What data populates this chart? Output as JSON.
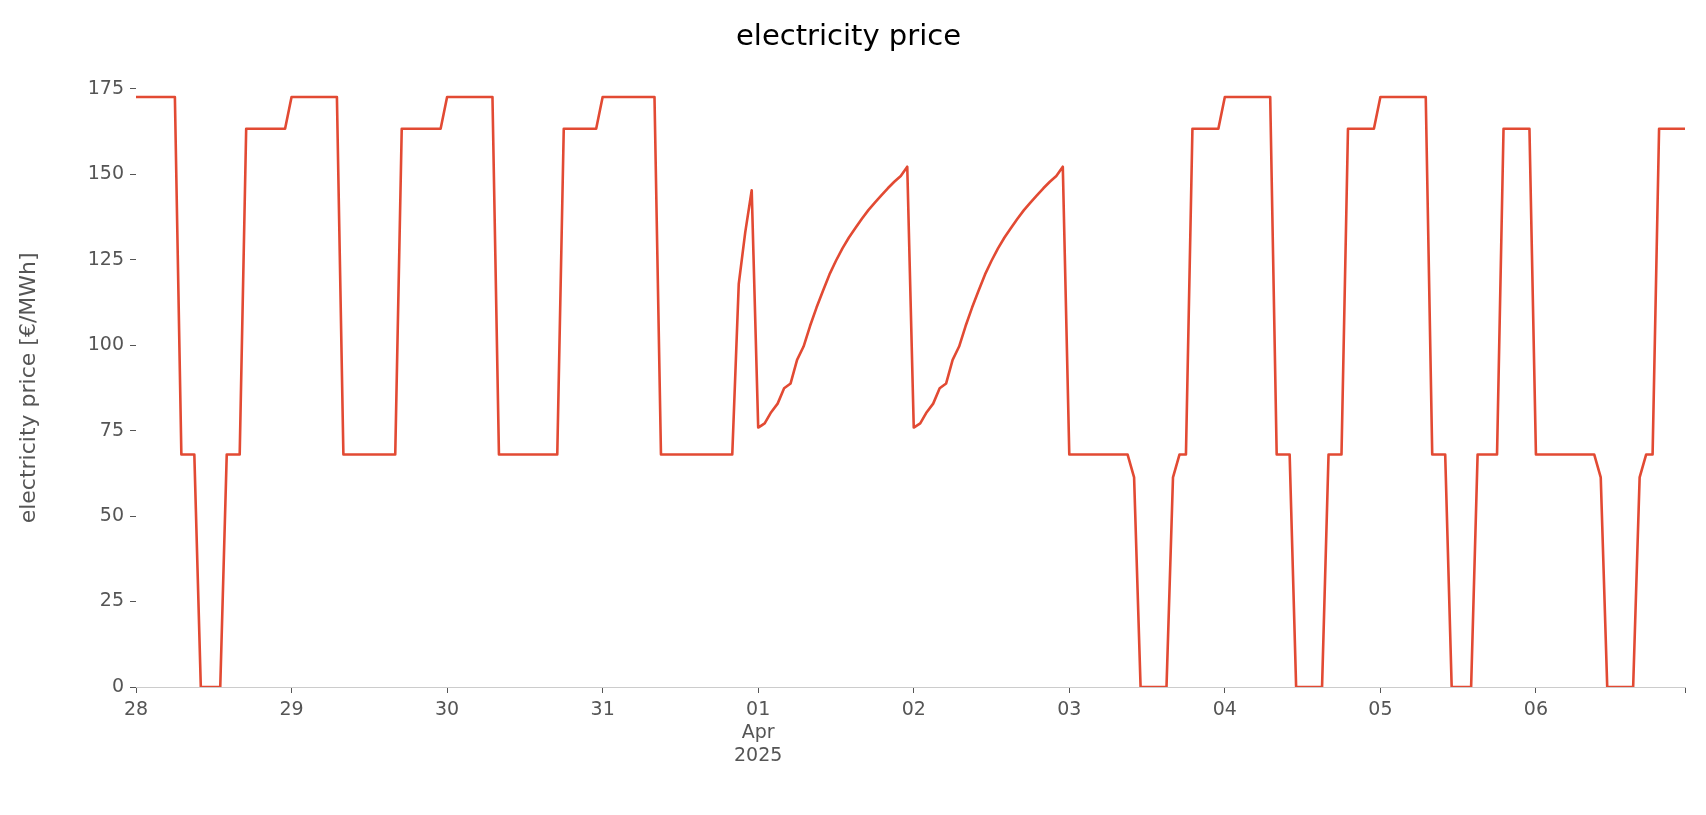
{
  "chart_data": {
    "type": "line",
    "title": "electricity price",
    "ylabel": "electricity price [€/MWh]",
    "x": [
      "2025-03-28T00:00",
      "2025-03-28T06:00",
      "2025-03-28T07:00",
      "2025-03-28T09:00",
      "2025-03-28T10:00",
      "2025-03-28T13:00",
      "2025-03-28T14:00",
      "2025-03-28T16:00",
      "2025-03-28T17:00",
      "2025-03-28T23:00",
      "2025-03-29T00:00",
      "2025-03-29T07:00",
      "2025-03-29T08:00",
      "2025-03-29T16:00",
      "2025-03-29T17:00",
      "2025-03-29T23:00",
      "2025-03-30T00:00",
      "2025-03-30T07:00",
      "2025-03-30T08:00",
      "2025-03-30T17:00",
      "2025-03-30T18:00",
      "2025-03-30T23:00",
      "2025-03-31T00:00",
      "2025-03-31T08:00",
      "2025-03-31T09:00",
      "2025-03-31T20:00",
      "2025-03-31T21:00",
      "2025-03-31T22:00",
      "2025-03-31T23:00",
      "2025-04-01T00:00",
      "2025-04-01T01:00",
      "2025-04-01T02:00",
      "2025-04-01T03:00",
      "2025-04-01T04:00",
      "2025-04-01T05:00",
      "2025-04-01T06:00",
      "2025-04-01T07:00",
      "2025-04-01T08:00",
      "2025-04-01T09:00",
      "2025-04-01T10:00",
      "2025-04-01T11:00",
      "2025-04-01T12:00",
      "2025-04-01T13:00",
      "2025-04-01T14:00",
      "2025-04-01T15:00",
      "2025-04-01T16:00",
      "2025-04-01T17:00",
      "2025-04-01T18:00",
      "2025-04-01T19:00",
      "2025-04-01T20:00",
      "2025-04-01T21:00",
      "2025-04-01T22:00",
      "2025-04-01T23:00",
      "2025-04-02T00:00",
      "2025-04-02T01:00",
      "2025-04-02T02:00",
      "2025-04-02T03:00",
      "2025-04-02T04:00",
      "2025-04-02T05:00",
      "2025-04-02T06:00",
      "2025-04-02T07:00",
      "2025-04-02T08:00",
      "2025-04-02T09:00",
      "2025-04-02T10:00",
      "2025-04-02T11:00",
      "2025-04-02T12:00",
      "2025-04-02T13:00",
      "2025-04-02T14:00",
      "2025-04-02T15:00",
      "2025-04-02T16:00",
      "2025-04-02T17:00",
      "2025-04-02T18:00",
      "2025-04-02T19:00",
      "2025-04-02T20:00",
      "2025-04-02T21:00",
      "2025-04-02T22:00",
      "2025-04-02T23:00",
      "2025-04-03T00:00",
      "2025-04-03T09:00",
      "2025-04-03T10:00",
      "2025-04-03T11:00",
      "2025-04-03T15:00",
      "2025-04-03T16:00",
      "2025-04-03T17:00",
      "2025-04-03T18:00",
      "2025-04-03T19:00",
      "2025-04-03T23:00",
      "2025-04-04T00:00",
      "2025-04-04T07:00",
      "2025-04-04T08:00",
      "2025-04-04T10:00",
      "2025-04-04T11:00",
      "2025-04-04T15:00",
      "2025-04-04T16:00",
      "2025-04-04T18:00",
      "2025-04-04T19:00",
      "2025-04-04T23:00",
      "2025-04-05T00:00",
      "2025-04-05T07:00",
      "2025-04-05T08:00",
      "2025-04-05T10:00",
      "2025-04-05T11:00",
      "2025-04-05T14:00",
      "2025-04-05T15:00",
      "2025-04-05T18:00",
      "2025-04-05T19:00",
      "2025-04-05T23:00",
      "2025-04-06T00:00",
      "2025-04-06T09:00",
      "2025-04-06T10:00",
      "2025-04-06T11:00",
      "2025-04-06T15:00",
      "2025-04-06T16:00",
      "2025-04-06T17:00",
      "2025-04-06T18:00",
      "2025-04-06T19:00",
      "2025-04-06T23:00"
    ],
    "series": [
      {
        "color": "#e24a33",
        "values": [
          172.6,
          172.6,
          68,
          68,
          0,
          0,
          68,
          68,
          163.3,
          163.3,
          172.6,
          172.6,
          68,
          68,
          163.3,
          163.3,
          172.6,
          172.6,
          68,
          68,
          163.3,
          163.3,
          172.6,
          172.6,
          68,
          68,
          117.9,
          133,
          145.3,
          75.9,
          77.1,
          80.4,
          82.9,
          87.4,
          88.8,
          95.7,
          99.6,
          105.6,
          111.0,
          115.9,
          120.7,
          124.7,
          128.3,
          131.5,
          134.3,
          137.0,
          139.5,
          141.7,
          143.8,
          145.9,
          147.8,
          149.5,
          152.2,
          75.9,
          77.1,
          80.4,
          82.9,
          87.4,
          88.8,
          95.7,
          99.6,
          105.6,
          111.0,
          115.9,
          120.7,
          124.7,
          128.3,
          131.5,
          134.3,
          137.0,
          139.5,
          141.7,
          143.8,
          145.9,
          147.8,
          149.5,
          152.2,
          68,
          68,
          61.3,
          0,
          0,
          61.3,
          68,
          68,
          163.3,
          163.3,
          172.6,
          172.6,
          68,
          68,
          0,
          0,
          68,
          68,
          163.3,
          163.3,
          172.6,
          172.6,
          68,
          68,
          0,
          0,
          68,
          68,
          163.3,
          163.3,
          68,
          68,
          61.3,
          0,
          0,
          61.3,
          68,
          68,
          163.3,
          163.3
        ]
      }
    ],
    "xticks": [
      {
        "value": "2025-03-28",
        "label": "28"
      },
      {
        "value": "2025-03-29",
        "label": "29"
      },
      {
        "value": "2025-03-30",
        "label": "30"
      },
      {
        "value": "2025-03-31",
        "label": "31"
      },
      {
        "value": "2025-04-01",
        "label": "01\nApr\n2025"
      },
      {
        "value": "2025-04-02",
        "label": "02"
      },
      {
        "value": "2025-04-03",
        "label": "03"
      },
      {
        "value": "2025-04-04",
        "label": "04"
      },
      {
        "value": "2025-04-05",
        "label": "05"
      },
      {
        "value": "2025-04-06",
        "label": "06"
      },
      {
        "value": "2025-04-06T23:00",
        "label": null
      }
    ],
    "xlim": [
      "2025-03-28T00:00",
      "2025-04-06T23:00"
    ],
    "ylim": [
      0,
      175
    ],
    "yticks": [
      0,
      25,
      50,
      75,
      100,
      125,
      150,
      175
    ],
    "grid": false,
    "legend": false
  }
}
